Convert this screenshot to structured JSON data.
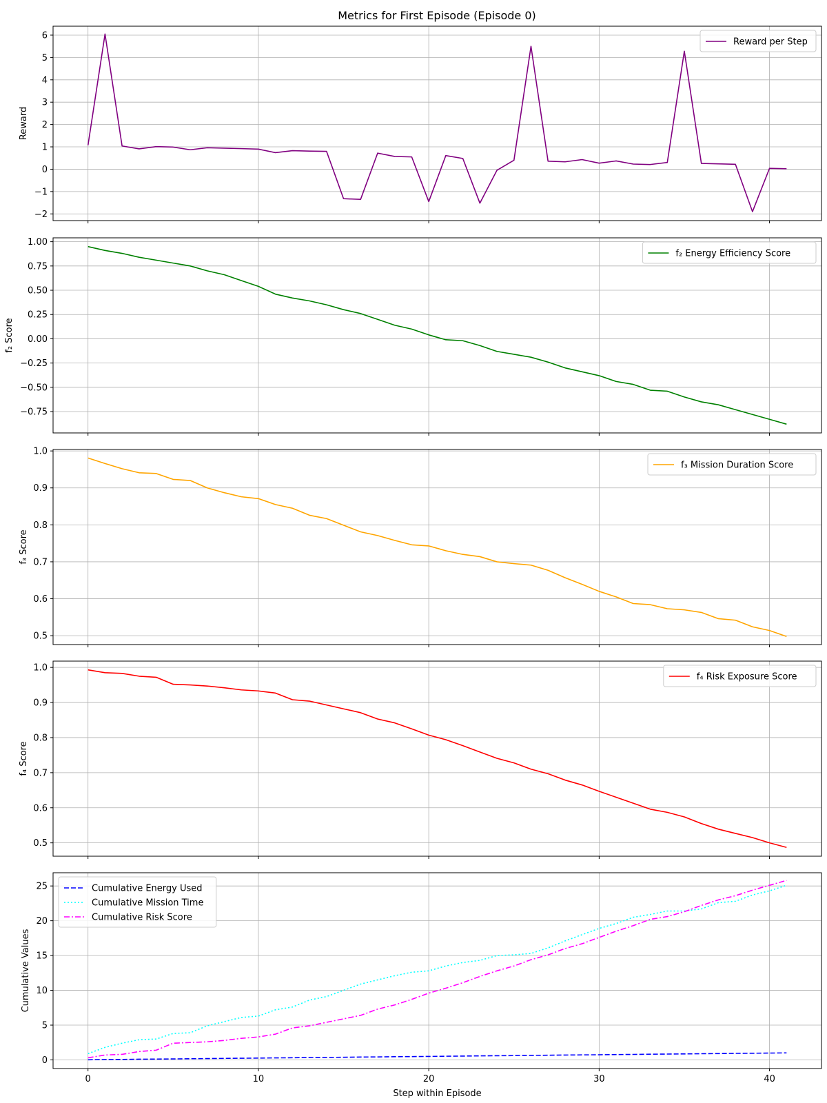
{
  "title": "Metrics for First Episode (Episode 0)",
  "chart_data": [
    {
      "type": "line",
      "ylabel": "Reward",
      "xlim": [
        -2.05,
        43.05
      ],
      "ylim": [
        -2.3,
        6.4
      ],
      "xticks": [
        0,
        10,
        20,
        30,
        40
      ],
      "yticks": [
        -2,
        -1,
        0,
        1,
        2,
        3,
        4,
        5,
        6
      ],
      "ytick_labels": [
        "−2",
        "−1",
        "0",
        "1",
        "2",
        "3",
        "4",
        "5",
        "6"
      ],
      "grid": true,
      "legend_position": "top-right",
      "series": [
        {
          "name": "Reward per Step",
          "color": "#800080",
          "dash": "solid",
          "x": [
            0,
            1,
            2,
            3,
            4,
            5,
            6,
            7,
            8,
            9,
            10,
            11,
            12,
            13,
            14,
            15,
            16,
            17,
            18,
            19,
            20,
            21,
            22,
            23,
            24,
            25,
            26,
            27,
            28,
            29,
            30,
            31,
            32,
            33,
            34,
            35,
            36,
            37,
            38,
            39,
            40,
            41
          ],
          "y": [
            1.07,
            6.05,
            1.04,
            0.91,
            1.01,
            0.99,
            0.87,
            0.96,
            0.94,
            0.92,
            0.9,
            0.74,
            0.83,
            0.81,
            0.8,
            -1.32,
            -1.35,
            0.72,
            0.57,
            0.55,
            -1.45,
            0.61,
            0.48,
            -1.52,
            -0.05,
            0.4,
            5.5,
            0.36,
            0.33,
            0.43,
            0.27,
            0.37,
            0.23,
            0.21,
            0.3,
            5.28,
            0.26,
            0.24,
            0.22,
            -1.9,
            0.04,
            0.02
          ]
        }
      ]
    },
    {
      "type": "line",
      "ylabel": "f₂ Score",
      "xlim": [
        -2.05,
        43.05
      ],
      "ylim": [
        -0.97,
        1.04
      ],
      "xticks": [
        0,
        10,
        20,
        30,
        40
      ],
      "yticks": [
        -0.75,
        -0.5,
        -0.25,
        0.0,
        0.25,
        0.5,
        0.75,
        1.0
      ],
      "ytick_labels": [
        "−0.75",
        "−0.50",
        "−0.25",
        "0.00",
        "0.25",
        "0.50",
        "0.75",
        "1.00"
      ],
      "grid": true,
      "legend_position": "top-right",
      "series": [
        {
          "name": "f₂ Energy Efficiency Score",
          "color": "#008000",
          "dash": "solid",
          "x": [
            0,
            1,
            2,
            3,
            4,
            5,
            6,
            7,
            8,
            9,
            10,
            11,
            12,
            13,
            14,
            15,
            16,
            17,
            18,
            19,
            20,
            21,
            22,
            23,
            24,
            25,
            26,
            27,
            28,
            29,
            30,
            31,
            32,
            33,
            34,
            35,
            36,
            37,
            38,
            39,
            40,
            41
          ],
          "y": [
            0.95,
            0.91,
            0.88,
            0.84,
            0.81,
            0.78,
            0.75,
            0.7,
            0.66,
            0.6,
            0.54,
            0.46,
            0.42,
            0.39,
            0.35,
            0.3,
            0.26,
            0.2,
            0.14,
            0.1,
            0.04,
            -0.01,
            -0.02,
            -0.07,
            -0.13,
            -0.16,
            -0.19,
            -0.24,
            -0.3,
            -0.34,
            -0.38,
            -0.44,
            -0.47,
            -0.53,
            -0.54,
            -0.6,
            -0.65,
            -0.68,
            -0.73,
            -0.78,
            -0.83,
            -0.88
          ]
        }
      ]
    },
    {
      "type": "line",
      "ylabel": "f₃ Score",
      "xlim": [
        -2.05,
        43.05
      ],
      "ylim": [
        0.476,
        1.004
      ],
      "xticks": [
        0,
        10,
        20,
        30,
        40
      ],
      "yticks": [
        0.5,
        0.6,
        0.7,
        0.8,
        0.9,
        1.0
      ],
      "ytick_labels": [
        "0.5",
        "0.6",
        "0.7",
        "0.8",
        "0.9",
        "1.0"
      ],
      "grid": true,
      "legend_position": "top-right",
      "series": [
        {
          "name": "f₃ Mission Duration Score",
          "color": "#ffa500",
          "dash": "solid",
          "x": [
            0,
            1,
            2,
            3,
            4,
            5,
            6,
            7,
            8,
            9,
            10,
            11,
            12,
            13,
            14,
            15,
            16,
            17,
            18,
            19,
            20,
            21,
            22,
            23,
            24,
            25,
            26,
            27,
            28,
            29,
            30,
            31,
            32,
            33,
            34,
            35,
            36,
            37,
            38,
            39,
            40,
            41
          ],
          "y": [
            0.981,
            0.966,
            0.952,
            0.941,
            0.939,
            0.923,
            0.92,
            0.9,
            0.887,
            0.876,
            0.871,
            0.855,
            0.845,
            0.826,
            0.817,
            0.799,
            0.781,
            0.771,
            0.758,
            0.746,
            0.743,
            0.73,
            0.72,
            0.714,
            0.7,
            0.695,
            0.691,
            0.677,
            0.657,
            0.639,
            0.62,
            0.605,
            0.587,
            0.584,
            0.573,
            0.57,
            0.563,
            0.546,
            0.542,
            0.524,
            0.514,
            0.498
          ]
        }
      ]
    },
    {
      "type": "line",
      "ylabel": "f₄ Score",
      "xlim": [
        -2.05,
        43.05
      ],
      "ylim": [
        0.462,
        1.018
      ],
      "xticks": [
        0,
        10,
        20,
        30,
        40
      ],
      "yticks": [
        0.5,
        0.6,
        0.7,
        0.8,
        0.9,
        1.0
      ],
      "ytick_labels": [
        "0.5",
        "0.6",
        "0.7",
        "0.8",
        "0.9",
        "1.0"
      ],
      "grid": true,
      "legend_position": "top-right",
      "series": [
        {
          "name": "f₄ Risk Exposure Score",
          "color": "#ff0000",
          "dash": "solid",
          "x": [
            0,
            1,
            2,
            3,
            4,
            5,
            6,
            7,
            8,
            9,
            10,
            11,
            12,
            13,
            14,
            15,
            16,
            17,
            18,
            19,
            20,
            21,
            22,
            23,
            24,
            25,
            26,
            27,
            28,
            29,
            30,
            31,
            32,
            33,
            34,
            35,
            36,
            37,
            38,
            39,
            40,
            41
          ],
          "y": [
            0.993,
            0.985,
            0.983,
            0.975,
            0.972,
            0.952,
            0.95,
            0.947,
            0.942,
            0.936,
            0.933,
            0.927,
            0.908,
            0.904,
            0.893,
            0.882,
            0.871,
            0.853,
            0.842,
            0.825,
            0.807,
            0.794,
            0.777,
            0.759,
            0.741,
            0.728,
            0.71,
            0.697,
            0.679,
            0.665,
            0.647,
            0.63,
            0.613,
            0.596,
            0.587,
            0.574,
            0.555,
            0.539,
            0.527,
            0.515,
            0.5,
            0.487
          ]
        }
      ]
    },
    {
      "type": "line",
      "ylabel": "Cumulative Values",
      "xlabel": "Step within Episode",
      "xlim": [
        -2.05,
        43.05
      ],
      "ylim": [
        -1.24,
        26.9
      ],
      "xticks": [
        0,
        10,
        20,
        30,
        40
      ],
      "yticks": [
        0,
        5,
        10,
        15,
        20,
        25
      ],
      "ytick_labels": [
        "0",
        "5",
        "10",
        "15",
        "20",
        "25"
      ],
      "grid": true,
      "legend_position": "top-left",
      "series": [
        {
          "name": "Cumulative Energy Used",
          "color": "#0000ff",
          "dash": "dashed",
          "x": [
            0,
            1,
            2,
            3,
            4,
            5,
            6,
            7,
            8,
            9,
            10,
            11,
            12,
            13,
            14,
            15,
            16,
            17,
            18,
            19,
            20,
            21,
            22,
            23,
            24,
            25,
            26,
            27,
            28,
            29,
            30,
            31,
            32,
            33,
            34,
            35,
            36,
            37,
            38,
            39,
            40,
            41
          ],
          "y": [
            0.02,
            0.05,
            0.07,
            0.1,
            0.12,
            0.14,
            0.17,
            0.19,
            0.22,
            0.24,
            0.26,
            0.29,
            0.31,
            0.34,
            0.36,
            0.38,
            0.41,
            0.43,
            0.46,
            0.48,
            0.5,
            0.53,
            0.55,
            0.58,
            0.6,
            0.62,
            0.65,
            0.67,
            0.7,
            0.72,
            0.74,
            0.77,
            0.79,
            0.82,
            0.84,
            0.86,
            0.89,
            0.91,
            0.94,
            0.96,
            0.98,
            1.01
          ]
        },
        {
          "name": "Cumulative Mission Time",
          "color": "#00ffff",
          "dash": "dotted",
          "x": [
            0,
            1,
            2,
            3,
            4,
            5,
            6,
            7,
            8,
            9,
            10,
            11,
            12,
            13,
            14,
            15,
            16,
            17,
            18,
            19,
            20,
            21,
            22,
            23,
            24,
            25,
            26,
            27,
            28,
            29,
            30,
            31,
            32,
            33,
            34,
            35,
            36,
            37,
            38,
            39,
            40,
            41
          ],
          "y": [
            0.9,
            1.8,
            2.4,
            2.9,
            3.0,
            3.8,
            3.9,
            4.9,
            5.5,
            6.1,
            6.3,
            7.2,
            7.6,
            8.6,
            9.1,
            10.0,
            10.9,
            11.5,
            12.1,
            12.6,
            12.8,
            13.5,
            14.0,
            14.3,
            15.0,
            15.1,
            15.3,
            16.1,
            17.1,
            18.0,
            18.9,
            19.6,
            20.5,
            20.9,
            21.4,
            21.4,
            21.7,
            22.6,
            22.8,
            23.7,
            24.3,
            25.1
          ]
        },
        {
          "name": "Cumulative Risk Score",
          "color": "#ff00ff",
          "dash": "dashdot",
          "x": [
            0,
            1,
            2,
            3,
            4,
            5,
            6,
            7,
            8,
            9,
            10,
            11,
            12,
            13,
            14,
            15,
            16,
            17,
            18,
            19,
            20,
            21,
            22,
            23,
            24,
            25,
            26,
            27,
            28,
            29,
            30,
            31,
            32,
            33,
            34,
            35,
            36,
            37,
            38,
            39,
            40,
            41
          ],
          "y": [
            0.3,
            0.7,
            0.8,
            1.2,
            1.4,
            2.4,
            2.5,
            2.6,
            2.8,
            3.1,
            3.3,
            3.7,
            4.6,
            4.9,
            5.4,
            5.9,
            6.4,
            7.3,
            7.9,
            8.7,
            9.6,
            10.3,
            11.1,
            12.0,
            12.8,
            13.5,
            14.4,
            15.1,
            16.0,
            16.7,
            17.6,
            18.5,
            19.3,
            20.2,
            20.6,
            21.3,
            22.2,
            23.0,
            23.6,
            24.4,
            25.1,
            25.8
          ]
        }
      ]
    }
  ]
}
